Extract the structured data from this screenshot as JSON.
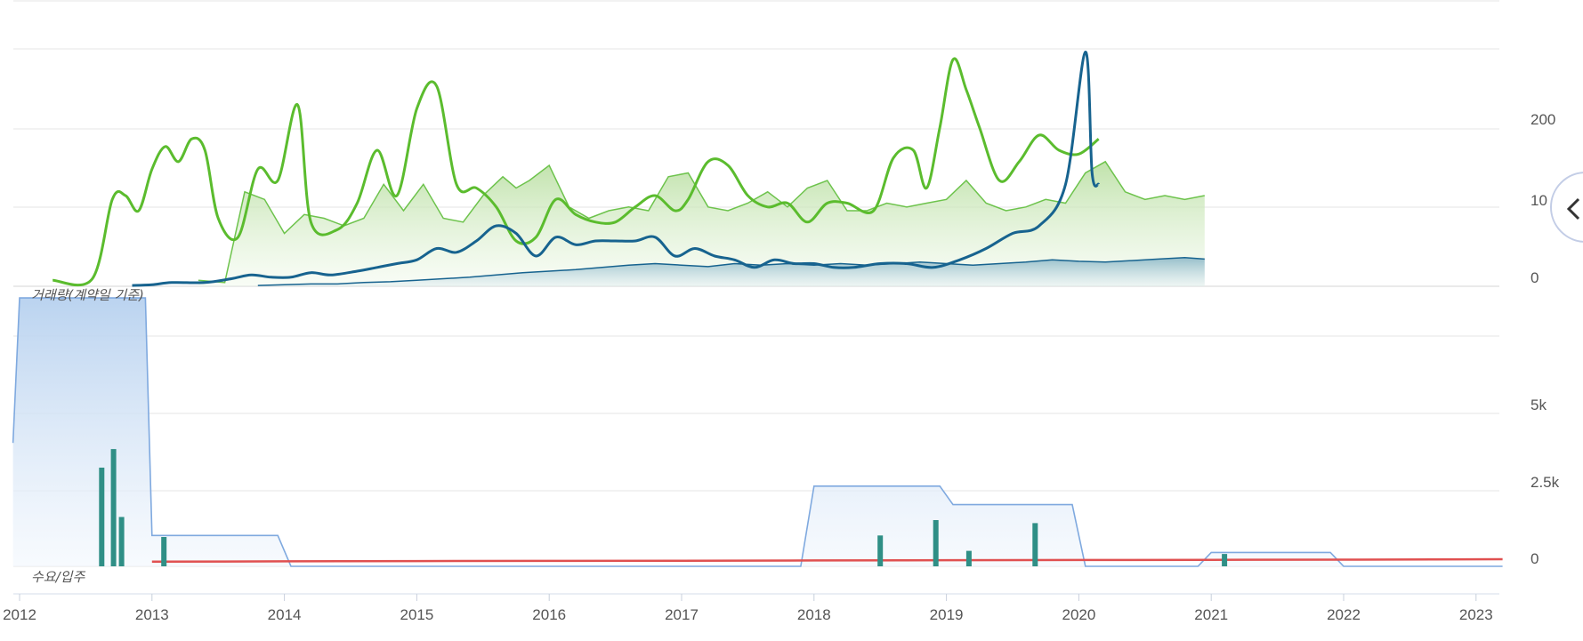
{
  "x_ticks": [
    "2012",
    "2013",
    "2014",
    "2015",
    "2016",
    "2017",
    "2018",
    "2019",
    "2020",
    "2021",
    "2022",
    "2023"
  ],
  "labels": {
    "volume_panel": "거래량(계약일 기준)",
    "supply_panel": "수요/입주"
  },
  "colors": {
    "price_light": "#5bbc2e",
    "price_mid": "#6dc34c",
    "price_fill": "#cfe9bd",
    "navy": "#17638f",
    "navy_fill": "#a9c9d6",
    "supply_line": "#7fa9df",
    "supply_fill": "#cfe0f3",
    "bar": "#2f8f86",
    "demand": "#e05050"
  },
  "chart_data": [
    {
      "type": "line",
      "panel": "upper",
      "y_ticks": [
        "0",
        "10",
        "200"
      ],
      "note": "Top panel: transaction volume / price trend series (unlabeled)",
      "series": [
        {
          "style": "thick-green",
          "x": [
            2012.25,
            2012.55,
            2012.7,
            2012.8,
            2012.9,
            2013.0,
            2013.1,
            2013.2,
            2013.3,
            2013.4,
            2013.5,
            2013.65,
            2013.8,
            2013.95,
            2014.1,
            2014.2,
            2014.4,
            2014.55,
            2014.7,
            2014.85,
            2015.0,
            2015.15,
            2015.3,
            2015.45,
            2015.6,
            2015.75,
            2015.9,
            2016.05,
            2016.2,
            2016.35,
            2016.5,
            2016.65,
            2016.8,
            2016.95,
            2017.05,
            2017.2,
            2017.35,
            2017.5,
            2017.65,
            2017.8,
            2017.95,
            2018.1,
            2018.25,
            2018.45,
            2018.6,
            2018.75,
            2018.85,
            2018.95,
            2019.05,
            2019.15,
            2019.25,
            2019.4,
            2019.55,
            2019.7,
            2019.85,
            2020.0,
            2020.15
          ],
          "y": [
            8,
            10,
            115,
            120,
            100,
            155,
            185,
            165,
            195,
            180,
            90,
            65,
            155,
            140,
            240,
            85,
            75,
            110,
            180,
            120,
            235,
            265,
            135,
            130,
            105,
            60,
            65,
            115,
            95,
            85,
            85,
            105,
            120,
            100,
            115,
            165,
            160,
            120,
            105,
            110,
            85,
            110,
            110,
            100,
            170,
            180,
            130,
            210,
            300,
            260,
            210,
            140,
            165,
            200,
            180,
            175,
            195
          ]
        },
        {
          "style": "thin-green-area",
          "x": [
            2013.35,
            2013.55,
            2013.7,
            2013.85,
            2014.0,
            2014.15,
            2014.3,
            2014.45,
            2014.6,
            2014.75,
            2014.9,
            2015.05,
            2015.2,
            2015.35,
            2015.5,
            2015.65,
            2015.75,
            2015.85,
            2016.0,
            2016.15,
            2016.3,
            2016.45,
            2016.6,
            2016.75,
            2016.9,
            2017.05,
            2017.2,
            2017.35,
            2017.5,
            2017.65,
            2017.8,
            2017.95,
            2018.1,
            2018.25,
            2018.4,
            2018.55,
            2018.7,
            2018.85,
            2019.0,
            2019.15,
            2019.3,
            2019.45,
            2019.6,
            2019.75,
            2019.9,
            2020.05,
            2020.2,
            2020.35,
            2020.5,
            2020.65,
            2020.8,
            2020.95
          ],
          "y": [
            8,
            5,
            125,
            115,
            70,
            95,
            90,
            80,
            90,
            135,
            100,
            135,
            90,
            85,
            120,
            145,
            130,
            140,
            160,
            105,
            90,
            100,
            105,
            100,
            145,
            150,
            105,
            100,
            110,
            125,
            105,
            130,
            140,
            100,
            100,
            110,
            105,
            110,
            115,
            140,
            110,
            100,
            105,
            115,
            110,
            150,
            165,
            125,
            115,
            120,
            115,
            120
          ]
        },
        {
          "style": "thick-navy",
          "x": [
            2012.85,
            2013.0,
            2013.15,
            2013.4,
            2013.6,
            2013.75,
            2013.9,
            2014.05,
            2014.2,
            2014.35,
            2014.55,
            2014.7,
            2014.85,
            2015.0,
            2015.15,
            2015.3,
            2015.45,
            2015.6,
            2015.75,
            2015.9,
            2016.05,
            2016.2,
            2016.35,
            2016.5,
            2016.65,
            2016.8,
            2016.95,
            2017.1,
            2017.25,
            2017.4,
            2017.55,
            2017.7,
            2017.85,
            2018.0,
            2018.15,
            2018.3,
            2018.5,
            2018.7,
            2018.9,
            2019.1,
            2019.3,
            2019.5,
            2019.7,
            2019.9,
            2020.05,
            2020.1,
            2020.15
          ],
          "y": [
            1,
            2,
            5,
            5,
            10,
            15,
            12,
            12,
            18,
            15,
            20,
            25,
            30,
            35,
            50,
            45,
            60,
            80,
            70,
            40,
            65,
            55,
            60,
            60,
            60,
            65,
            40,
            50,
            40,
            35,
            25,
            35,
            30,
            30,
            25,
            25,
            30,
            30,
            25,
            35,
            50,
            70,
            80,
            135,
            310,
            150,
            135
          ]
        },
        {
          "style": "thin-navy-area",
          "x": [
            2013.8,
            2014.0,
            2014.2,
            2014.4,
            2014.6,
            2014.8,
            2015.0,
            2015.2,
            2015.4,
            2015.6,
            2015.8,
            2016.0,
            2016.2,
            2016.4,
            2016.6,
            2016.8,
            2017.0,
            2017.2,
            2017.4,
            2017.6,
            2017.8,
            2018.0,
            2018.2,
            2018.4,
            2018.6,
            2018.8,
            2019.0,
            2019.2,
            2019.4,
            2019.6,
            2019.8,
            2020.0,
            2020.2,
            2020.4,
            2020.6,
            2020.8,
            2020.95
          ],
          "y": [
            1,
            2,
            3,
            3,
            5,
            6,
            8,
            10,
            12,
            15,
            18,
            20,
            22,
            25,
            28,
            30,
            28,
            26,
            30,
            28,
            30,
            28,
            30,
            28,
            30,
            32,
            30,
            28,
            30,
            32,
            35,
            33,
            32,
            34,
            36,
            38,
            36
          ]
        }
      ]
    },
    {
      "type": "bar",
      "panel": "lower",
      "y_ticks": [
        "0",
        "2.5k",
        "5k"
      ],
      "note": "Bottom panel: supply (입주) area, demand line, transaction bars",
      "series": [
        {
          "style": "supply-area",
          "x": [
            2011.95,
            2012.0,
            2012.95,
            2013.0,
            2013.95,
            2014.05,
            2017.9,
            2018.0,
            2018.95,
            2019.05,
            2019.95,
            2020.05,
            2020.9,
            2021.0,
            2021.9,
            2022.0,
            2023.2
          ],
          "y": [
            4000,
            8700,
            8700,
            1000,
            1000,
            0,
            0,
            2600,
            2600,
            2000,
            2000,
            0,
            0,
            450,
            450,
            0,
            0
          ]
        },
        {
          "style": "demand-line",
          "x": [
            2013.0,
            2014.0,
            2015.0,
            2016.0,
            2017.0,
            2018.0,
            2019.0,
            2020.0,
            2021.0,
            2022.0,
            2023.2
          ],
          "y": [
            150,
            160,
            170,
            175,
            180,
            190,
            200,
            205,
            210,
            215,
            230
          ]
        },
        {
          "style": "bars",
          "x": [
            2012.62,
            2012.71,
            2012.77,
            2013.09,
            2018.5,
            2018.92,
            2019.17,
            2019.67,
            2021.1
          ],
          "y": [
            3200,
            3800,
            1600,
            950,
            1000,
            1500,
            500,
            1400,
            400
          ]
        }
      ]
    }
  ]
}
